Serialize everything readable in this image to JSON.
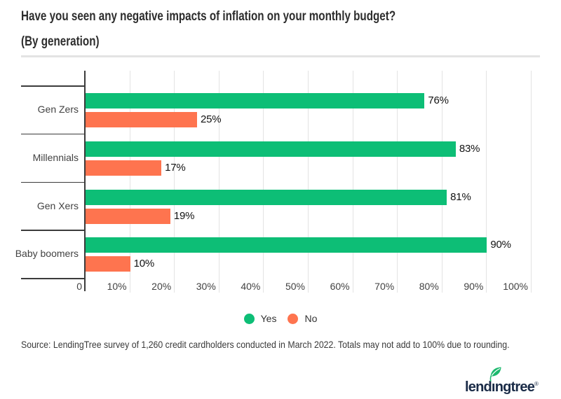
{
  "header": {
    "title": "Have you seen any negative impacts of inflation on your monthly budget?",
    "subtitle": "(By generation)"
  },
  "chart_data": {
    "type": "bar",
    "orientation": "horizontal",
    "title": "Have you seen any negative impacts of inflation on your monthly budget? (By generation)",
    "categories": [
      "Gen Zers",
      "Millennials",
      "Gen Xers",
      "Baby boomers"
    ],
    "series": [
      {
        "name": "Yes",
        "color": "#0dbe76",
        "values": [
          76,
          83,
          81,
          90
        ]
      },
      {
        "name": "No",
        "color": "#fe744f",
        "values": [
          25,
          17,
          19,
          10
        ]
      }
    ],
    "value_suffix": "%",
    "xlim": [
      0,
      100
    ],
    "x_ticks": [
      "0",
      "10%",
      "20%",
      "30%",
      "40%",
      "50%",
      "60%",
      "70%",
      "80%",
      "90%",
      "100%"
    ],
    "grid": "vertical",
    "legend_position": "bottom-center"
  },
  "footer": {
    "source": "Source: LendingTree survey of 1,260 credit cardholders conducted in March 2022. Totals may not add to 100% due to rounding.",
    "logo": {
      "part1": "lend",
      "part2": "ı",
      "part3": "ngtree",
      "reg": "®"
    }
  },
  "colors": {
    "yes_green": "#0dbe76",
    "no_orange": "#fe744f",
    "logo_navy": "#1a2b47",
    "leaf_green": "#1db96e",
    "axis_dark": "#3b3b3b",
    "grid_gray": "#e3e3e3"
  }
}
